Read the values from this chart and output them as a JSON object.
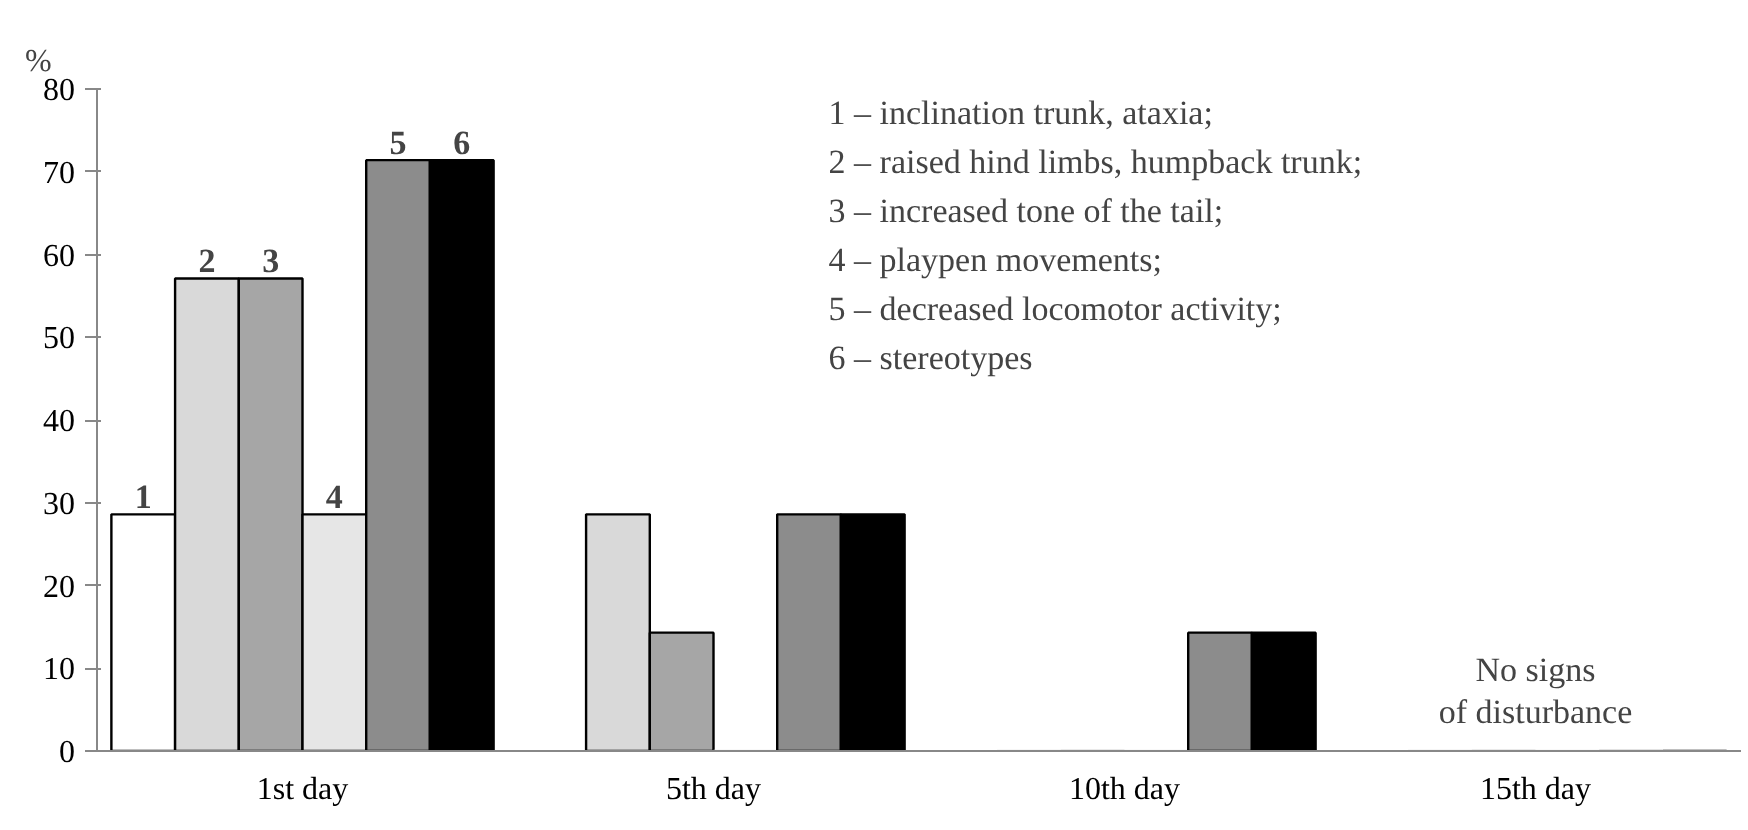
{
  "chart_data": {
    "type": "bar",
    "ylabel": "%",
    "categories": [
      "1st day",
      "5th day",
      "10th day",
      "15th day"
    ],
    "series": [
      {
        "name": "1",
        "color": "#ffffff",
        "values": [
          28.6,
          0,
          0,
          0
        ]
      },
      {
        "name": "2",
        "color": "#d9d9d9",
        "values": [
          57.1,
          28.6,
          0,
          0
        ]
      },
      {
        "name": "3",
        "color": "#a6a6a6",
        "values": [
          57.1,
          14.3,
          0,
          0
        ]
      },
      {
        "name": "4",
        "color": "#e6e6e6",
        "values": [
          28.6,
          0,
          0,
          0
        ]
      },
      {
        "name": "5",
        "color": "#8c8c8c",
        "values": [
          71.4,
          28.6,
          14.3,
          0
        ]
      },
      {
        "name": "6",
        "color": "#000000",
        "values": [
          71.4,
          28.6,
          14.3,
          0
        ]
      }
    ],
    "ylim": [
      0,
      80
    ],
    "yticks": [
      0,
      10,
      20,
      30,
      40,
      50,
      60,
      70,
      80
    ],
    "grid": false,
    "annotations": [
      "1 – inclination trunk, ataxia;",
      "2 – raised hind limbs, humpback trunk;",
      "3 – increased tone of the tail;",
      "4 – playpen movements;",
      "5 – decreased locomotor activity;",
      "6 – stereotypes",
      "No signs\nof disturbance"
    ]
  }
}
